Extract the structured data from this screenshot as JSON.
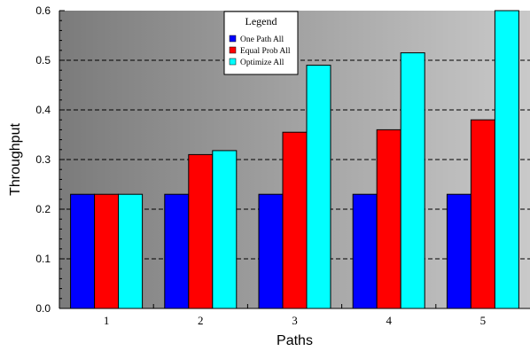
{
  "chart_data": {
    "type": "bar",
    "xlabel": "Paths",
    "ylabel": "Throughput",
    "categories": [
      "1",
      "2",
      "3",
      "4",
      "5"
    ],
    "ylim": [
      0,
      0.6
    ],
    "yticks": [
      "0.0",
      "0.1",
      "0.2",
      "0.3",
      "0.4",
      "0.5",
      "0.6"
    ],
    "grid": "horizontal dashed",
    "legend": {
      "title": "Legend",
      "position": "top-center"
    },
    "series": [
      {
        "name": "One Path All",
        "color": "#0000ff",
        "values": [
          0.23,
          0.23,
          0.23,
          0.23,
          0.23
        ]
      },
      {
        "name": "Equal Prob All",
        "color": "#ff0000",
        "values": [
          0.23,
          0.31,
          0.355,
          0.36,
          0.38
        ]
      },
      {
        "name": "Optimize All",
        "color": "#00ffff",
        "values": [
          0.23,
          0.318,
          0.49,
          0.515,
          0.6
        ]
      }
    ]
  }
}
